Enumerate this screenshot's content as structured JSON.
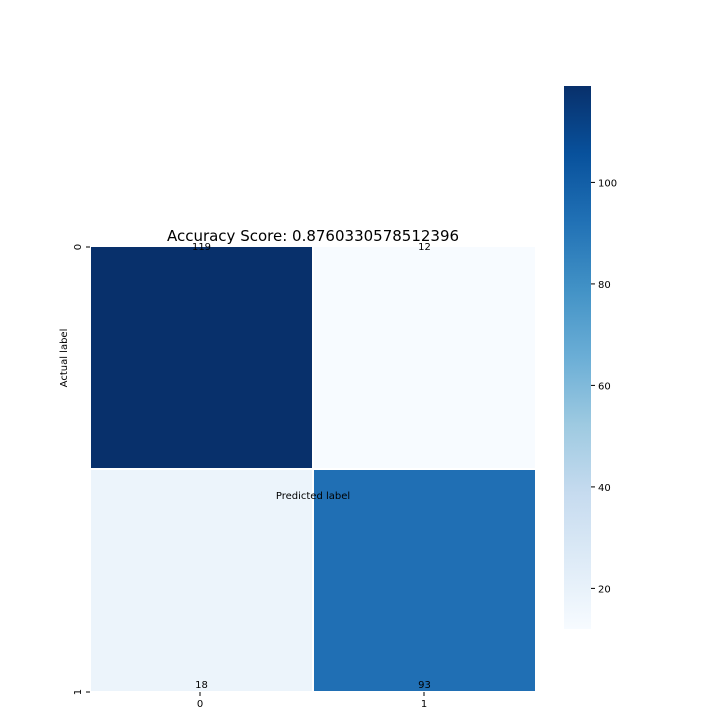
{
  "chart_data": {
    "type": "heatmap",
    "title": "Accuracy Score: 0.8760330578512396",
    "xlabel": "Predicted label",
    "ylabel": "Actual label",
    "x_categories": [
      "0",
      "1"
    ],
    "y_categories": [
      "0",
      "1"
    ],
    "matrix": [
      [
        119,
        12
      ],
      [
        18,
        93
      ]
    ],
    "annotations": [
      [
        "119",
        "12"
      ],
      [
        "18",
        "93"
      ]
    ],
    "colormap": "Blues",
    "color_range": [
      12,
      119
    ],
    "colorbar_ticks": [
      20,
      40,
      60,
      80,
      100
    ],
    "colorbar_tick_labels": [
      "20",
      "40",
      "60",
      "80",
      "100"
    ]
  }
}
